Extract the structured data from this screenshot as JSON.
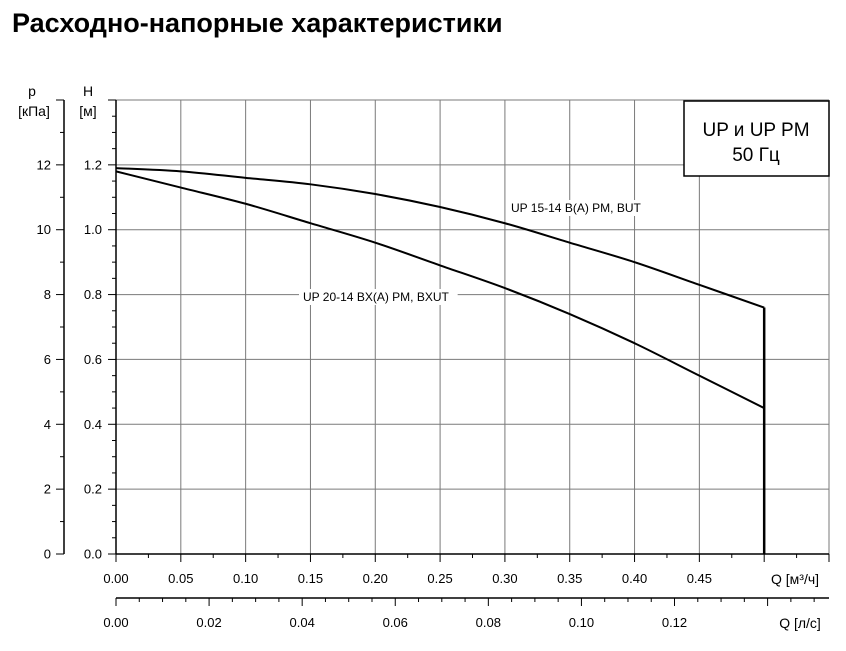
{
  "title": "Расходно-напорные характеристики",
  "chart_data": {
    "type": "line",
    "title": "Расходно-напорные характеристики",
    "legend_box": {
      "line1": "UP и UP PM",
      "line2": "50 Гц",
      "placement": "top-right"
    },
    "x_axis": {
      "label": "Q [м³/ч]",
      "range": [
        0,
        0.55
      ],
      "ticks": [
        0,
        0.05,
        0.1,
        0.15,
        0.2,
        0.25,
        0.3,
        0.35,
        0.4,
        0.45
      ],
      "tick_labels": [
        "0.00",
        "0.05",
        "0.10",
        "0.15",
        "0.20",
        "0.25",
        "0.30",
        "0.35",
        "0.40",
        "0.45"
      ]
    },
    "x2_axis": {
      "label": "Q [л/с]",
      "ticks": [
        0,
        0.02,
        0.04,
        0.06,
        0.08,
        0.1,
        0.12
      ],
      "tick_labels": [
        "0.00",
        "0.02",
        "0.04",
        "0.06",
        "0.08",
        "0.10",
        "0.12"
      ]
    },
    "y_axis": {
      "label_top": "H",
      "label": "[м]",
      "range": [
        0,
        1.4
      ],
      "ticks": [
        0,
        0.2,
        0.4,
        0.6,
        0.8,
        1.0,
        1.2
      ],
      "tick_labels": [
        "0.0",
        "0.2",
        "0.4",
        "0.6",
        "0.8",
        "1.0",
        "1.2"
      ]
    },
    "y2_axis": {
      "label_top": "p",
      "label": "[кПа]",
      "ticks": [
        0,
        2,
        4,
        6,
        8,
        10,
        12
      ],
      "tick_labels": [
        "0",
        "2",
        "4",
        "6",
        "8",
        "10",
        "12"
      ]
    },
    "grid": true,
    "series": [
      {
        "name": "UP 15-14 B(A) PM, BUT",
        "x": [
          0,
          0.05,
          0.1,
          0.15,
          0.2,
          0.25,
          0.3,
          0.35,
          0.4,
          0.45,
          0.5
        ],
        "y": [
          1.19,
          1.18,
          1.16,
          1.14,
          1.11,
          1.07,
          1.02,
          0.96,
          0.9,
          0.83,
          0.76
        ]
      },
      {
        "name": "UP 20-14 BX(A) PM, BXUT",
        "x": [
          0,
          0.05,
          0.1,
          0.15,
          0.2,
          0.25,
          0.3,
          0.35,
          0.4,
          0.45,
          0.5
        ],
        "y": [
          1.18,
          1.13,
          1.08,
          1.02,
          0.96,
          0.89,
          0.82,
          0.74,
          0.65,
          0.55,
          0.45
        ]
      }
    ],
    "max_flow_cutoff": 0.5
  }
}
